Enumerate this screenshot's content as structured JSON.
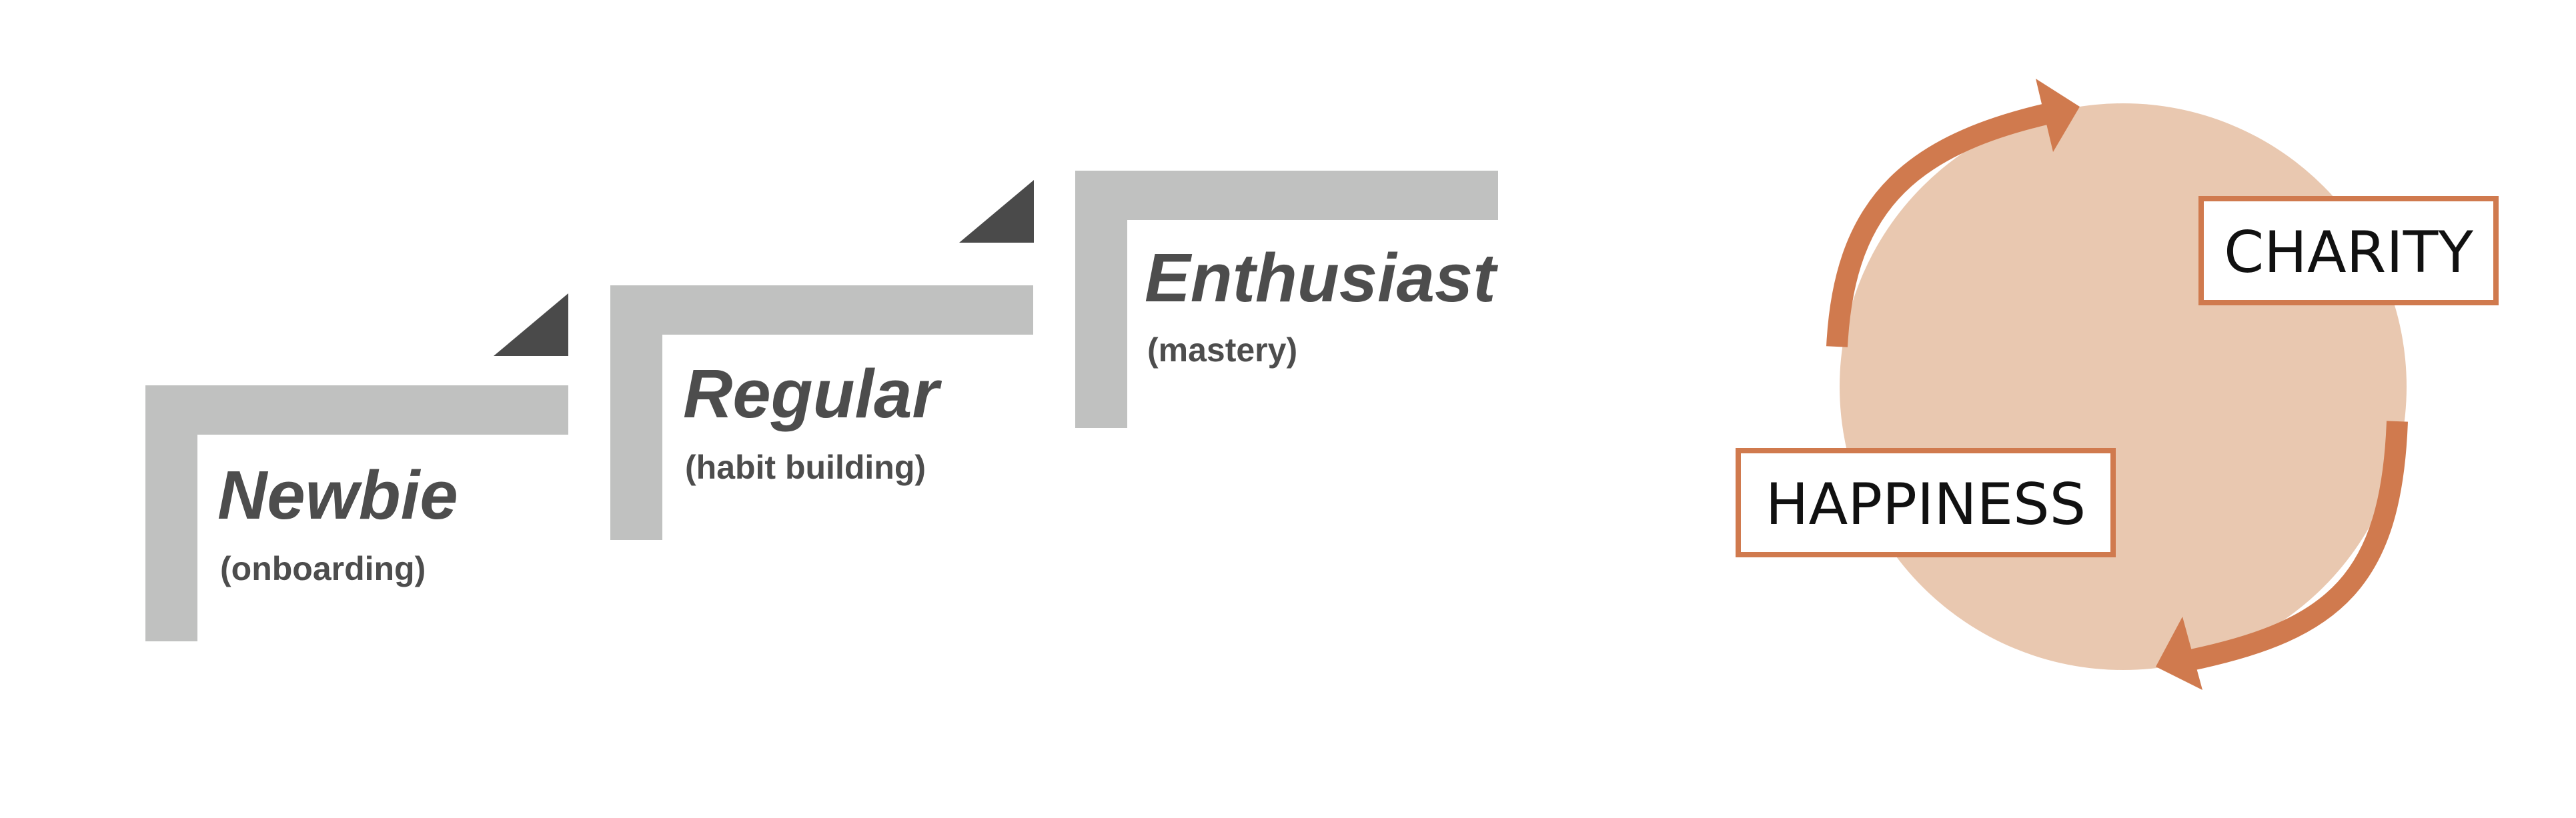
{
  "colors": {
    "bracket": "#c0c1c0",
    "step_marker": "#4a4a4a",
    "stage_text": "#4d4d4d",
    "circle_fill": "#e9c8b0",
    "arrow": "#d07a4e",
    "label_border": "#d07a4e",
    "label_text": "#111111"
  },
  "stages": [
    {
      "title": "Newbie",
      "subtitle": "(onboarding)"
    },
    {
      "title": "Regular",
      "subtitle": "(habit building)"
    },
    {
      "title": "Enthusiast",
      "subtitle": "(mastery)"
    }
  ],
  "cycle": {
    "labels": {
      "top": "CHARITY",
      "bottom": "HAPPINESS"
    },
    "arrow_icons": [
      "cycle-arrow-top-icon",
      "cycle-arrow-bottom-icon"
    ]
  }
}
